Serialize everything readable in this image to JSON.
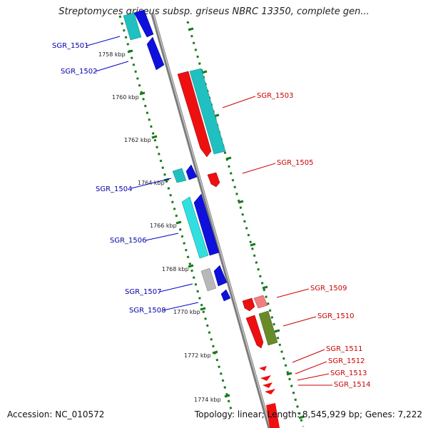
{
  "title": "Streptomyces griseus subsp. griseus NBRC 13350, complete gen...",
  "footer": {
    "accession": "Accession: NC_010572",
    "summary": "Topology: linear; Length: 8,545,929 bp; Genes: 7,222"
  },
  "colors": {
    "scale_dots": "#1a7a1a",
    "backbone": "#888888",
    "minus_strand_label": "#0000aa",
    "plus_strand_label": "#cc0000",
    "blue_gene": "#1010dd",
    "cyan_gene": "#20c0c0",
    "red_gene": "#ee1010",
    "green_gene": "#6a8a2a",
    "gray_gene": "#b8b8b8"
  },
  "scale_labels": [
    "1758 kbp",
    "1760 kbp",
    "1762 kbp",
    "1764 kbp",
    "1766 kbp",
    "1768 kbp",
    "1770 kbp",
    "1772 kbp",
    "1774 kbp"
  ],
  "left_genes": [
    "SGR_1501",
    "SGR_1502",
    "SGR_1504",
    "SGR_1506",
    "SGR_1507",
    "SGR_1508"
  ],
  "right_genes": [
    "SGR_1503",
    "SGR_1505",
    "SGR_1509",
    "SGR_1510",
    "SGR_1511",
    "SGR_1512",
    "SGR_1513",
    "SGR_1514"
  ]
}
